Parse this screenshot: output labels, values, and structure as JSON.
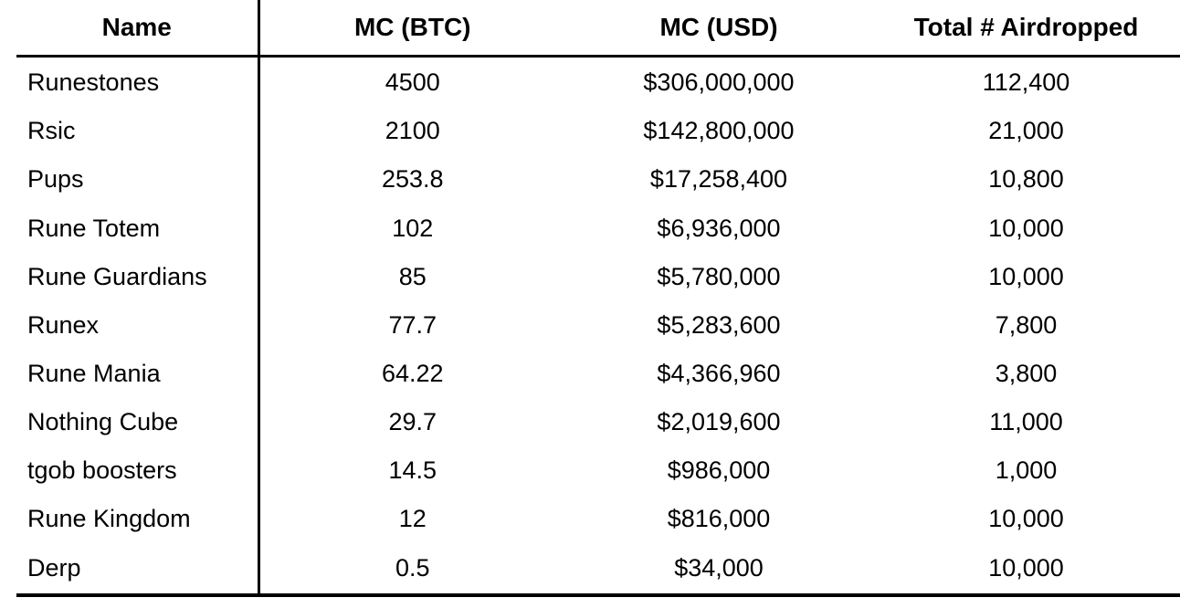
{
  "table": {
    "columns": [
      "Name",
      "MC (BTC)",
      "MC (USD)",
      "Total # Airdropped"
    ],
    "rows": [
      {
        "name": "Runestones",
        "mc_btc": "4500",
        "mc_usd": "$306,000,000",
        "airdropped": "112,400"
      },
      {
        "name": "Rsic",
        "mc_btc": "2100",
        "mc_usd": "$142,800,000",
        "airdropped": "21,000"
      },
      {
        "name": "Pups",
        "mc_btc": "253.8",
        "mc_usd": "$17,258,400",
        "airdropped": "10,800"
      },
      {
        "name": "Rune Totem",
        "mc_btc": "102",
        "mc_usd": "$6,936,000",
        "airdropped": "10,000"
      },
      {
        "name": "Rune Guardians",
        "mc_btc": "85",
        "mc_usd": "$5,780,000",
        "airdropped": "10,000"
      },
      {
        "name": "Runex",
        "mc_btc": "77.7",
        "mc_usd": "$5,283,600",
        "airdropped": "7,800"
      },
      {
        "name": "Rune Mania",
        "mc_btc": "64.22",
        "mc_usd": "$4,366,960",
        "airdropped": "3,800"
      },
      {
        "name": "Nothing Cube",
        "mc_btc": "29.7",
        "mc_usd": "$2,019,600",
        "airdropped": "11,000"
      },
      {
        "name": "tgob boosters",
        "mc_btc": "14.5",
        "mc_usd": "$986,000",
        "airdropped": "1,000"
      },
      {
        "name": "Rune Kingdom",
        "mc_btc": "12",
        "mc_usd": "$816,000",
        "airdropped": "10,000"
      },
      {
        "name": "Derp",
        "mc_btc": "0.5",
        "mc_usd": "$34,000",
        "airdropped": "10,000"
      }
    ]
  },
  "colors": {
    "background": "#ffffff",
    "text": "#000000",
    "rule": "#000000"
  },
  "chart_data": {
    "type": "table",
    "columns": [
      "Name",
      "MC (BTC)",
      "MC (USD)",
      "Total # Airdropped"
    ],
    "rows": [
      [
        "Runestones",
        4500,
        306000000,
        112400
      ],
      [
        "Rsic",
        2100,
        142800000,
        21000
      ],
      [
        "Pups",
        253.8,
        17258400,
        10800
      ],
      [
        "Rune Totem",
        102,
        6936000,
        10000
      ],
      [
        "Rune Guardians",
        85,
        5780000,
        10000
      ],
      [
        "Runex",
        77.7,
        5283600,
        7800
      ],
      [
        "Rune Mania",
        64.22,
        4366960,
        3800
      ],
      [
        "Nothing Cube",
        29.7,
        2019600,
        11000
      ],
      [
        "tgob boosters",
        14.5,
        986000,
        1000
      ],
      [
        "Rune Kingdom",
        12,
        816000,
        10000
      ],
      [
        "Derp",
        0.5,
        34000,
        10000
      ]
    ]
  }
}
